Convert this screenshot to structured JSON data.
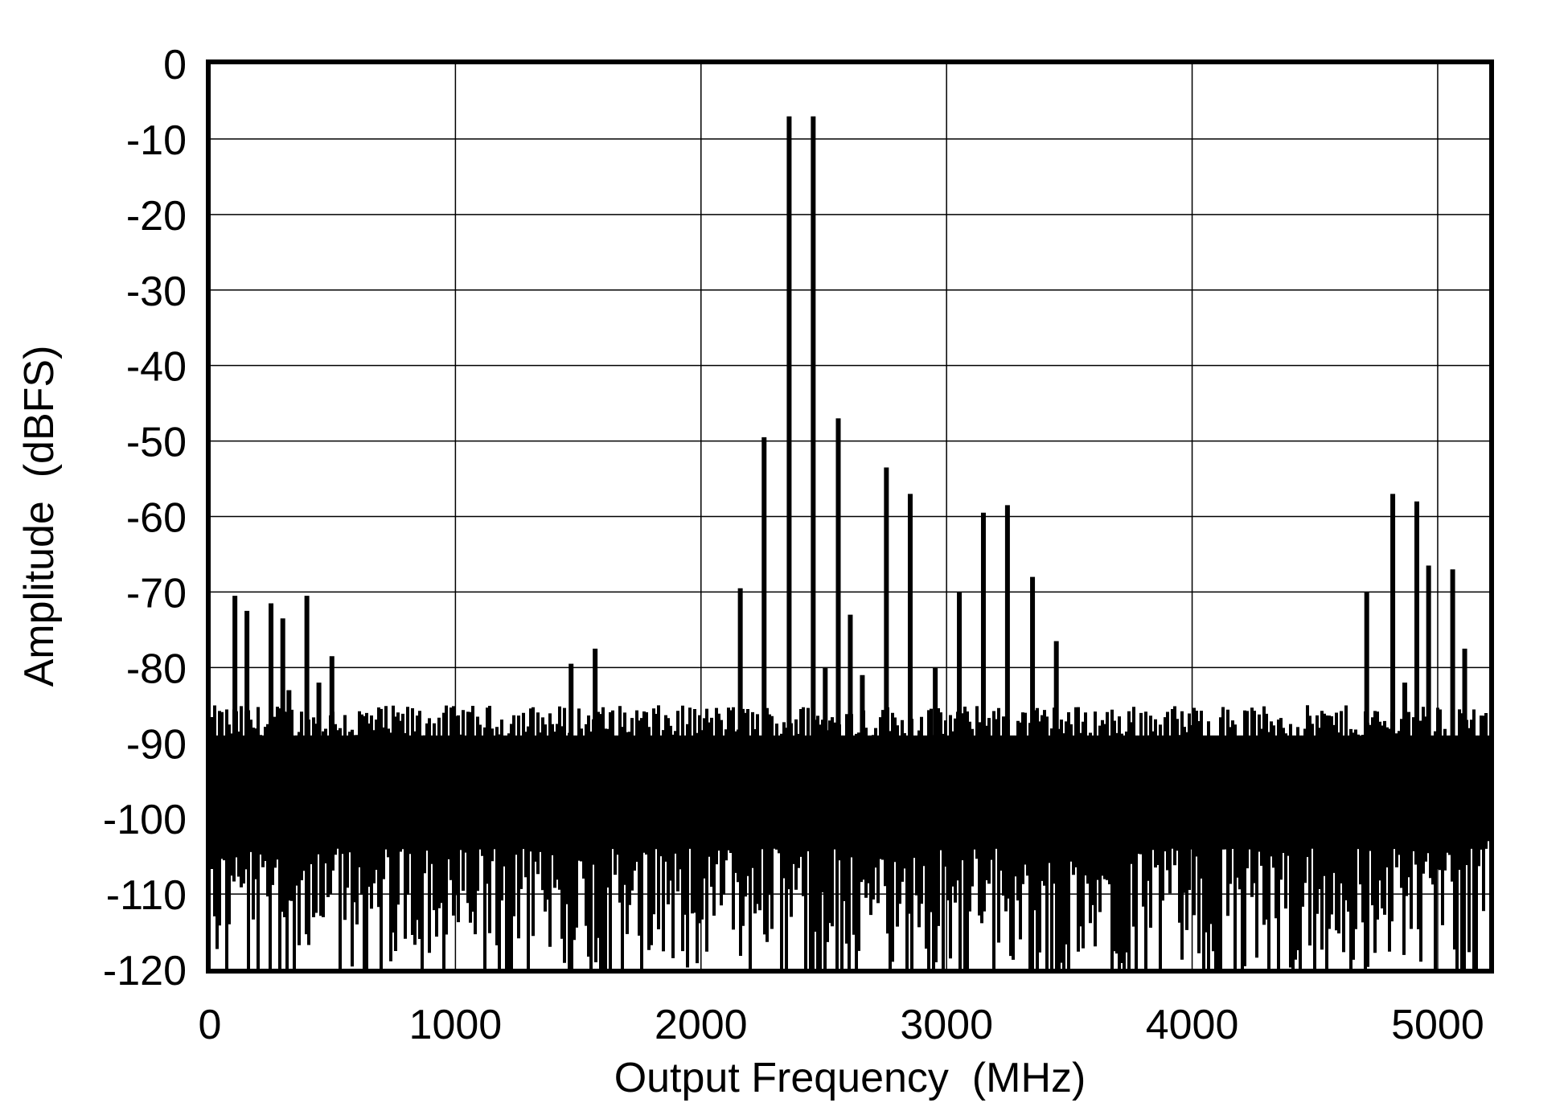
{
  "chart_data": {
    "type": "line",
    "title": "",
    "xlabel": "Output Frequency  (MHz)",
    "ylabel": "Amplitude  (dBFS)",
    "xlim": [
      0,
      5213
    ],
    "ylim": [
      -120,
      0
    ],
    "xticks": [
      0,
      1000,
      2000,
      3000,
      4000,
      5000
    ],
    "yticks": [
      0,
      -10,
      -20,
      -30,
      -40,
      -50,
      -60,
      -70,
      -80,
      -90,
      -100,
      -110,
      -120
    ],
    "grid": true,
    "line_color": "#000000",
    "noise_floor": {
      "top_min": -92,
      "top_max": -85,
      "bottom_min": -120,
      "bottom_max": -104
    },
    "spurs": [
      {
        "x": 102,
        "y": -70.5
      },
      {
        "x": 151,
        "y": -72.5
      },
      {
        "x": 249,
        "y": -71.5
      },
      {
        "x": 297,
        "y": -73.5
      },
      {
        "x": 322,
        "y": -83
      },
      {
        "x": 395,
        "y": -70.5
      },
      {
        "x": 444,
        "y": -82
      },
      {
        "x": 497,
        "y": -78.5
      },
      {
        "x": 1471,
        "y": -79.5
      },
      {
        "x": 1569,
        "y": -77.5
      },
      {
        "x": 2160,
        "y": -69.5
      },
      {
        "x": 2257,
        "y": -49.5
      },
      {
        "x": 2359,
        "y": -7
      },
      {
        "x": 2457,
        "y": -7
      },
      {
        "x": 2506,
        "y": -80
      },
      {
        "x": 2559,
        "y": -47
      },
      {
        "x": 2608,
        "y": -73
      },
      {
        "x": 2657,
        "y": -81
      },
      {
        "x": 2755,
        "y": -53.5
      },
      {
        "x": 2852,
        "y": -57
      },
      {
        "x": 2954,
        "y": -80
      },
      {
        "x": 3052,
        "y": -70
      },
      {
        "x": 3150,
        "y": -59.5
      },
      {
        "x": 3248,
        "y": -58.5
      },
      {
        "x": 3350,
        "y": -68
      },
      {
        "x": 3447,
        "y": -76.5
      },
      {
        "x": 4711,
        "y": -70
      },
      {
        "x": 4817,
        "y": -57
      },
      {
        "x": 4866,
        "y": -82
      },
      {
        "x": 4915,
        "y": -58
      },
      {
        "x": 4963,
        "y": -66.5
      },
      {
        "x": 5061,
        "y": -67
      },
      {
        "x": 5110,
        "y": -77.5
      }
    ]
  }
}
